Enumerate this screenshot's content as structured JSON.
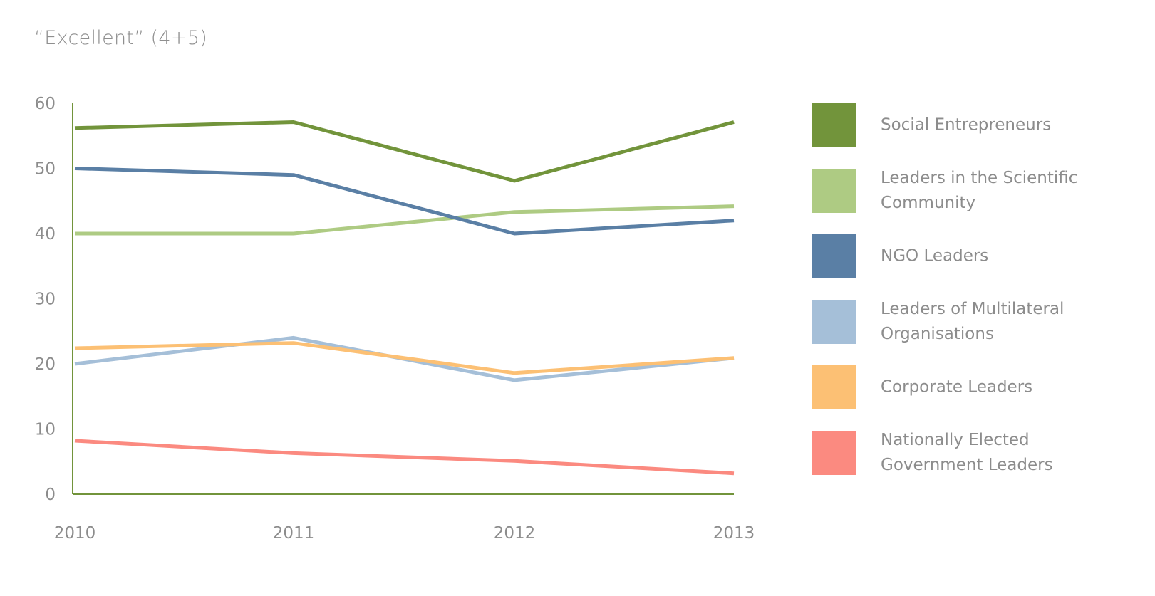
{
  "chart_data": {
    "type": "line",
    "title": "",
    "subtitle": "“Excellent” (4+5)",
    "xlabel": "",
    "ylabel": "",
    "x": [
      "2010",
      "2011",
      "2012",
      "2013"
    ],
    "yticks": [
      "0",
      "10",
      "20",
      "30",
      "40",
      "50",
      "60"
    ],
    "ylim": [
      0,
      60
    ],
    "grid": false,
    "legend_position": "right",
    "series": [
      {
        "name": "Social Entrepreneurs",
        "color": "#72943b",
        "values": [
          56.2,
          57.1,
          48.1,
          57.1
        ]
      },
      {
        "name": "Leaders in the Scientific Community",
        "color": "#aecb83",
        "values": [
          40.0,
          40.0,
          43.3,
          44.2
        ]
      },
      {
        "name": "NGO Leaders",
        "color": "#5a7fa5",
        "values": [
          50.0,
          49.0,
          40.0,
          42.0
        ]
      },
      {
        "name": "Leaders of Multilateral Organisations",
        "color": "#a5bfd8",
        "values": [
          20.0,
          24.0,
          17.5,
          20.9
        ]
      },
      {
        "name": "Corporate Leaders",
        "color": "#fcc074",
        "values": [
          22.4,
          23.2,
          18.6,
          20.9
        ]
      },
      {
        "name": "Nationally Elected Government Leaders",
        "color": "#fb8a80",
        "values": [
          8.2,
          6.3,
          5.1,
          3.2
        ]
      }
    ]
  }
}
